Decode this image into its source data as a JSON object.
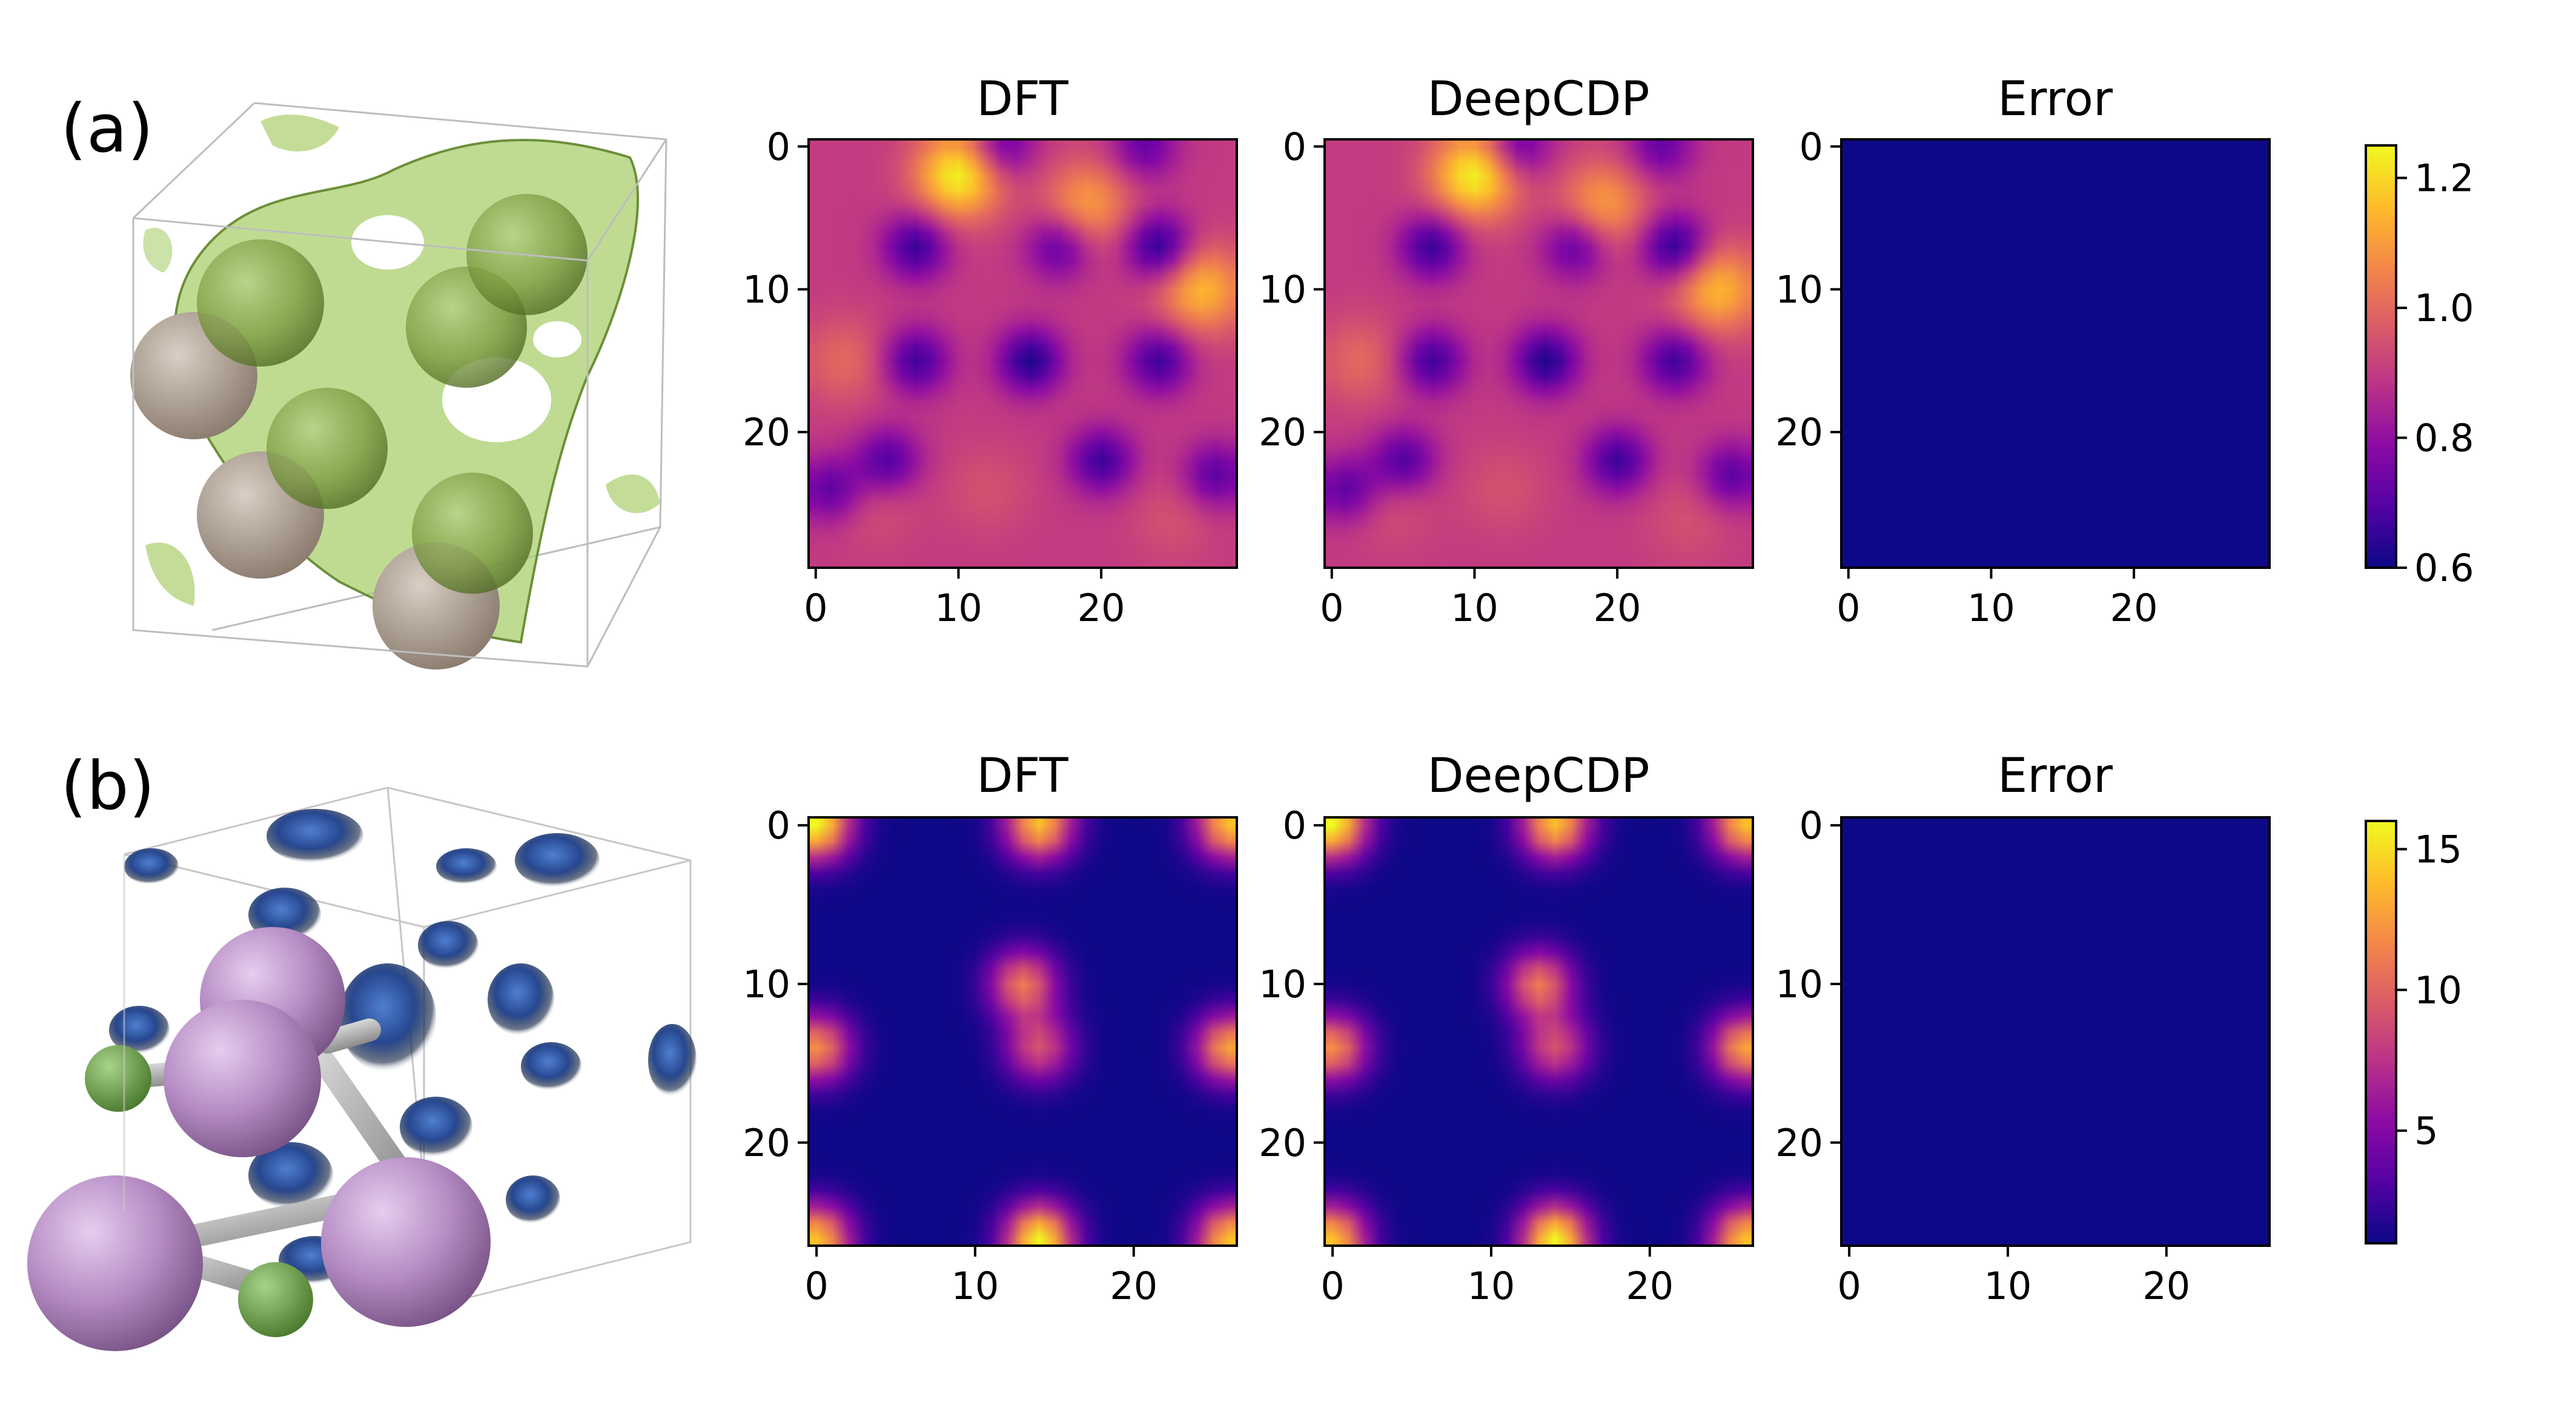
{
  "chart_data": [
    {
      "type": "heatmap",
      "panel_label": "(a)",
      "grid_size": 30,
      "colormap": "plasma",
      "xticks": [
        0,
        10,
        20
      ],
      "yticks": [
        0,
        10,
        20
      ],
      "maps": [
        {
          "title": "DFT",
          "field": "a_density"
        },
        {
          "title": "DeepCDP",
          "field": "a_density"
        },
        {
          "title": "Error",
          "field": "zero"
        }
      ],
      "colorbar": {
        "range": [
          0.6,
          1.25
        ],
        "ticks": [
          0.6,
          0.8,
          1.0,
          1.2
        ],
        "tick_labels": [
          "0.6",
          "0.8",
          "1.0",
          "1.2"
        ]
      },
      "field_params": {
        "base": 0.9,
        "maxima": [
          [
            2,
            10,
            1.25
          ],
          [
            4,
            19,
            1.1
          ],
          [
            10,
            27,
            1.15
          ],
          [
            15,
            2,
            1.0
          ],
          [
            24,
            12,
            0.95
          ],
          [
            26,
            25,
            0.95
          ],
          [
            25,
            4,
            0.95
          ]
        ],
        "minima": [
          [
            7,
            7,
            0.65
          ],
          [
            15,
            7,
            0.66
          ],
          [
            7,
            17,
            0.7
          ],
          [
            7,
            24,
            0.62
          ],
          [
            15,
            15,
            0.62
          ],
          [
            15,
            24,
            0.66
          ],
          [
            22,
            5,
            0.68
          ],
          [
            22,
            20,
            0.66
          ],
          [
            24,
            1,
            0.7
          ],
          [
            0,
            13,
            0.7
          ],
          [
            0,
            23,
            0.72
          ],
          [
            23,
            28,
            0.7
          ]
        ]
      }
    },
    {
      "type": "heatmap",
      "panel_label": "(b)",
      "grid_size": 27,
      "colormap": "plasma",
      "xticks": [
        0,
        10,
        20
      ],
      "yticks": [
        0,
        10,
        20
      ],
      "maps": [
        {
          "title": "DFT",
          "field": "b_density"
        },
        {
          "title": "DeepCDP",
          "field": "b_density"
        },
        {
          "title": "Error",
          "field": "zero"
        }
      ],
      "colorbar": {
        "range": [
          1,
          16
        ],
        "ticks": [
          5,
          10,
          15
        ],
        "tick_labels": [
          "5",
          "10",
          "15"
        ]
      },
      "field_params": {
        "base": 1,
        "peaks": [
          [
            0,
            0,
            16
          ],
          [
            0,
            14,
            14
          ],
          [
            0,
            26,
            14
          ],
          [
            26,
            0,
            14
          ],
          [
            26,
            14,
            16
          ],
          [
            26,
            26,
            14
          ],
          [
            14,
            0,
            12
          ],
          [
            14,
            26,
            13
          ],
          [
            10,
            13,
            11
          ],
          [
            14,
            14,
            9
          ]
        ]
      }
    }
  ]
}
